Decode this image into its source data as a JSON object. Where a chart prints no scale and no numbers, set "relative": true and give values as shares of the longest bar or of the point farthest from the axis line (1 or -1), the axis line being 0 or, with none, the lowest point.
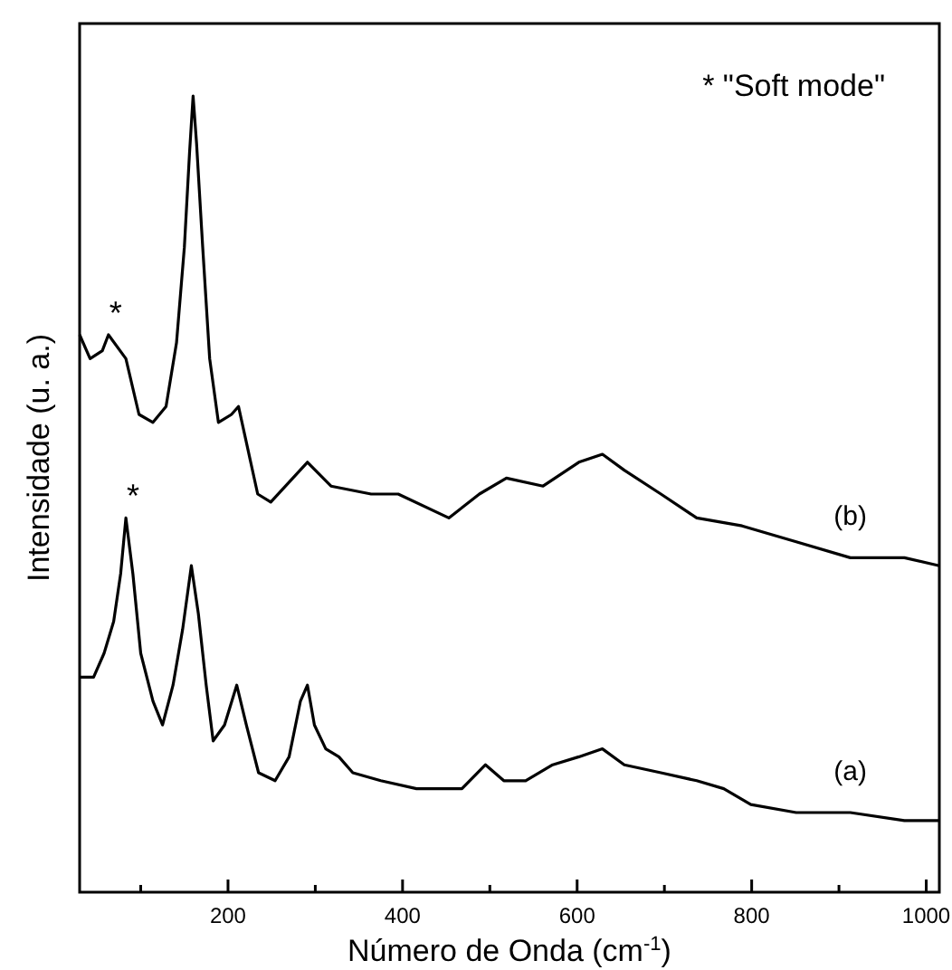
{
  "chart_data": {
    "type": "line",
    "xlabel": "Número de Onda (cm$^{-1}$)",
    "ylabel": "Intensidade (u. a.)",
    "relative": true,
    "xlim": [
      30,
      1015
    ],
    "xticks": [
      {
        "value": 100,
        "label": null
      },
      200,
      {
        "value": 300,
        "label": null
      },
      400,
      {
        "value": 500,
        "label": null
      },
      600,
      {
        "value": 700,
        "label": null
      },
      800,
      {
        "value": 900,
        "label": null
      },
      1000
    ],
    "annotations": [
      "* \"Soft mode\"",
      {
        "text": "*",
        "x": 63,
        "y": 0.7
      },
      {
        "text": "*",
        "x": 83,
        "y": 0.47
      }
    ],
    "series": [
      {
        "name": "(a)",
        "color": "#000000",
        "x": [
          30,
          46,
          58,
          69,
          77,
          83,
          91,
          100,
          114,
          125,
          137,
          148,
          158,
          166,
          175,
          183,
          196,
          210,
          221,
          235,
          254,
          270,
          283,
          291,
          299,
          312,
          327,
          343,
          375,
          416,
          468,
          495,
          516,
          541,
          572,
          602,
          629,
          654,
          696,
          737,
          768,
          799,
          851,
          913,
          975,
          1015
        ],
        "values": [
          0.27,
          0.27,
          0.3,
          0.34,
          0.4,
          0.47,
          0.4,
          0.3,
          0.24,
          0.21,
          0.26,
          0.33,
          0.41,
          0.35,
          0.26,
          0.19,
          0.21,
          0.26,
          0.21,
          0.15,
          0.14,
          0.17,
          0.24,
          0.26,
          0.21,
          0.18,
          0.17,
          0.15,
          0.14,
          0.13,
          0.13,
          0.16,
          0.14,
          0.14,
          0.16,
          0.17,
          0.18,
          0.16,
          0.15,
          0.14,
          0.13,
          0.11,
          0.1,
          0.1,
          0.09,
          0.09
        ]
      },
      {
        "name": "(b)",
        "color": "#000000",
        "x": [
          30,
          42,
          56,
          63,
          83,
          98,
          114,
          129,
          141,
          150,
          156,
          160,
          164,
          171,
          179,
          189,
          204,
          212,
          222,
          234,
          249,
          291,
          318,
          364,
          395,
          453,
          488,
          519,
          561,
          602,
          629,
          654,
          696,
          737,
          789,
          851,
          913,
          975,
          1015
        ],
        "values": [
          0.7,
          0.67,
          0.68,
          0.7,
          0.67,
          0.6,
          0.59,
          0.61,
          0.69,
          0.81,
          0.93,
          1.0,
          0.94,
          0.81,
          0.67,
          0.59,
          0.6,
          0.61,
          0.56,
          0.5,
          0.49,
          0.54,
          0.51,
          0.5,
          0.5,
          0.47,
          0.5,
          0.52,
          0.51,
          0.54,
          0.55,
          0.53,
          0.5,
          0.47,
          0.46,
          0.44,
          0.42,
          0.42,
          0.41
        ]
      }
    ]
  }
}
